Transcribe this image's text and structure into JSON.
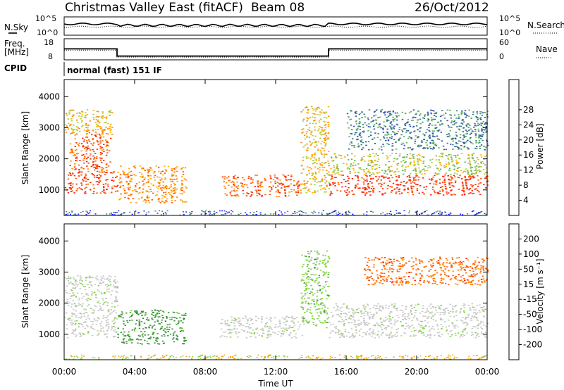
{
  "header": {
    "title": "Christmas Valley East (fitACF)",
    "beam": "Beam 08",
    "date": "26/Oct/2012"
  },
  "noise_panel": {
    "left_label": "N.Sky",
    "right_label": "N.Search",
    "left_ticks": [
      "10^5",
      "10^0"
    ],
    "right_ticks": [
      "10^5",
      "10^0"
    ]
  },
  "freq_panel": {
    "label_line1": "Freq.",
    "label_line2": "[MHz]",
    "right_label": "Nave",
    "left_ticks": [
      "18",
      "8"
    ],
    "right_ticks": [
      "60",
      "0"
    ]
  },
  "cpid": {
    "label": "CPID",
    "text": "normal (fast) 151 IF"
  },
  "x_axis": {
    "label": "Time UT",
    "ticks": [
      "00:00",
      "04:00",
      "08:00",
      "12:00",
      "16:00",
      "20:00",
      "00:00"
    ]
  },
  "chart_data": [
    {
      "type": "heatmap",
      "name": "power",
      "ylabel": "Slant Range [km]",
      "ylim": [
        180,
        4550
      ],
      "yticks": [
        1000,
        2000,
        3000,
        4000
      ],
      "xlim": [
        0,
        24
      ],
      "colorbar": {
        "label": "Power [dB]",
        "ticks": [
          "4",
          "8",
          "12",
          "16",
          "20",
          "24",
          "28"
        ],
        "colors": [
          "#1a1aff",
          "#2e4fae",
          "#3a7f7f",
          "#5fb35f",
          "#a6d23c",
          "#ffb000",
          "#ff8a00",
          "#ff5a00",
          "#ff2000"
        ]
      },
      "echo_regions": [
        {
          "t": [
            0.0,
            3.0
          ],
          "r": [
            900,
            1600
          ],
          "level": 8
        },
        {
          "t": [
            0.3,
            2.6
          ],
          "r": [
            1600,
            2900
          ],
          "level": 7
        },
        {
          "t": [
            0.0,
            2.8
          ],
          "r": [
            2800,
            3600
          ],
          "level": 5
        },
        {
          "t": [
            3.0,
            6.9
          ],
          "r": [
            600,
            1800
          ],
          "level": 6
        },
        {
          "t": [
            8.8,
            13.4
          ],
          "r": [
            800,
            1500
          ],
          "level": 7
        },
        {
          "t": [
            13.4,
            15.0
          ],
          "r": [
            900,
            3700
          ],
          "level": 5
        },
        {
          "t": [
            15.0,
            24.0
          ],
          "r": [
            850,
            1500
          ],
          "level": 8
        },
        {
          "t": [
            15.0,
            24.0
          ],
          "r": [
            1500,
            2200
          ],
          "level": 4
        },
        {
          "t": [
            16.0,
            24.0
          ],
          "r": [
            2300,
            3600
          ],
          "level": 2
        }
      ]
    },
    {
      "type": "heatmap",
      "name": "velocity",
      "ylabel": "Slant Range [km]",
      "ylim": [
        180,
        4550
      ],
      "yticks": [
        1000,
        2000,
        3000,
        4000
      ],
      "xlim": [
        0,
        24
      ],
      "colorbar": {
        "label": "Velocity [m s⁻¹]",
        "ticks": [
          "200",
          "100",
          "50",
          "15",
          "-15",
          "-50",
          "-100",
          "-200"
        ],
        "colors": [
          "#1a3ccc",
          "#2d6e3c",
          "#3e9a3e",
          "#7ed63a",
          "#c8c8c8",
          "#c8c8c8",
          "#ff9a00",
          "#ff6a00",
          "#ff1a00"
        ]
      },
      "echo_regions": [
        {
          "t": [
            0.0,
            3.0
          ],
          "r": [
            900,
            2900
          ],
          "vel": 0
        },
        {
          "t": [
            3.0,
            6.9
          ],
          "r": [
            700,
            1800
          ],
          "vel": 50
        },
        {
          "t": [
            8.8,
            13.6
          ],
          "r": [
            900,
            1600
          ],
          "vel": 0
        },
        {
          "t": [
            13.4,
            15.0
          ],
          "r": [
            1200,
            3700
          ],
          "vel": 15
        },
        {
          "t": [
            15.0,
            24.0
          ],
          "r": [
            900,
            2000
          ],
          "vel": 0
        },
        {
          "t": [
            17.0,
            24.0
          ],
          "r": [
            2600,
            3500
          ],
          "vel": -50
        }
      ]
    }
  ]
}
